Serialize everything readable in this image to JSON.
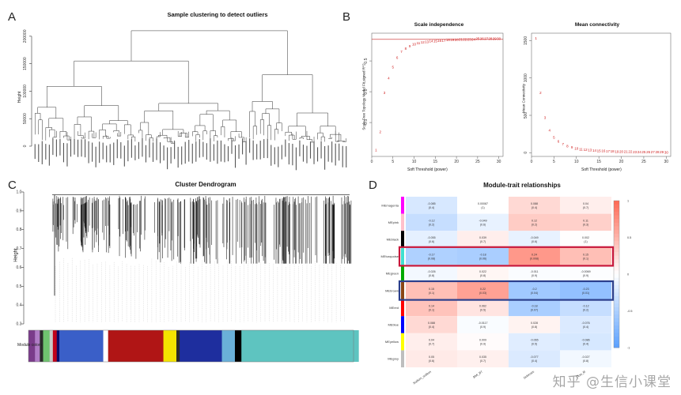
{
  "figure": {
    "panel_labels": [
      "A",
      "B",
      "C",
      "D"
    ],
    "watermark": "知乎 @生信小课堂"
  },
  "panelA": {
    "title": "Sample clustering to detect outliers",
    "ylabel": "Height",
    "yticks": [
      "0",
      "50000",
      "100000",
      "150000",
      "200000"
    ],
    "leaf_count": 88
  },
  "panelB": {
    "chart_data": [
      {
        "type": "scatter",
        "title": "Scale independence",
        "xlabel": "Soft Threshold (power)",
        "ylabel": "Scale Free Topology Model Fit,signed R^2",
        "xticks": [
          "0",
          "5",
          "10",
          "15",
          "20",
          "25",
          "30"
        ],
        "yticks": [
          "-0.5",
          "0.0",
          "0.5"
        ],
        "xlim": [
          0,
          31
        ],
        "ylim": [
          -1.05,
          0.95
        ],
        "threshold_line": 0.85,
        "x": [
          1,
          2,
          3,
          4,
          5,
          6,
          7,
          8,
          9,
          10,
          11,
          12,
          13,
          14,
          15,
          16,
          17,
          18,
          19,
          20,
          21,
          22,
          23,
          24,
          25,
          26,
          27,
          28,
          29,
          30
        ],
        "values": [
          -0.95,
          -0.65,
          -0.02,
          0.22,
          0.4,
          0.55,
          0.65,
          0.7,
          0.74,
          0.77,
          0.79,
          0.8,
          0.81,
          0.82,
          0.82,
          0.83,
          0.83,
          0.84,
          0.84,
          0.84,
          0.85,
          0.85,
          0.85,
          0.85,
          0.86,
          0.86,
          0.86,
          0.86,
          0.86,
          0.86
        ]
      },
      {
        "type": "scatter",
        "title": "Mean connectivity",
        "xlabel": "Soft Threshold (power)",
        "ylabel": "Mean Connectivity",
        "xticks": [
          "0",
          "5",
          "10",
          "15",
          "20",
          "25",
          "30"
        ],
        "yticks": [
          "0",
          "500",
          "1000",
          "1500"
        ],
        "xlim": [
          0,
          31
        ],
        "ylim": [
          -50,
          1600
        ],
        "x": [
          1,
          2,
          3,
          4,
          5,
          6,
          7,
          8,
          9,
          10,
          11,
          12,
          13,
          14,
          15,
          16,
          17,
          18,
          19,
          20,
          21,
          22,
          23,
          24,
          25,
          26,
          27,
          28,
          29,
          30
        ],
        "values": [
          1530,
          800,
          470,
          300,
          205,
          150,
          112,
          88,
          70,
          57,
          47,
          40,
          34,
          29,
          25,
          22,
          19,
          17,
          15,
          13,
          12,
          11,
          10,
          9,
          8,
          7,
          7,
          6,
          6,
          5
        ]
      }
    ]
  },
  "panelC": {
    "title": "Cluster Dendrogram",
    "ylabel": "Height",
    "yticks": [
      "0.3",
      "0.4",
      "0.5",
      "0.6",
      "0.7",
      "0.8",
      "0.9",
      "1.0"
    ],
    "colorbar_label": "Module colors",
    "module_colors": [
      "#7a3b8a",
      "#b07cc6",
      "#2a2a2a",
      "#6fc36f",
      "#c8c8c8",
      "#c0001a",
      "#0a0a6a",
      "#3a5fc8",
      "#ffffff",
      "#b01515",
      "#f4e400",
      "#2a2a2a",
      "#1e2e9e",
      "#6ab0d8",
      "#000000",
      "#5ec4c0"
    ],
    "module_widths": [
      0.02,
      0.015,
      0.01,
      0.02,
      0.01,
      0.012,
      0.008,
      0.135,
      0.015,
      0.17,
      0.04,
      0.01,
      0.13,
      0.04,
      0.02,
      0.36
    ]
  },
  "panelD": {
    "chart_data": {
      "type": "heatmap",
      "title": "Module-trait relationships",
      "rows": [
        "MEmagenta",
        "MEpink",
        "MEblack",
        "MEturquoise",
        "MEgreen",
        "MEbrown",
        "MEred",
        "MEblue",
        "MEyellow",
        "MEgrey"
      ],
      "row_colors": [
        "#ff00ff",
        "#ffc0cb",
        "#000000",
        "#40e0d0",
        "#00aa00",
        "#8b4513",
        "#ff0000",
        "#0000ff",
        "#ffff00",
        "#bebebe"
      ],
      "columns": [
        "Sodium_sodium",
        "BMI_BT",
        "Sclerosis",
        "Flow_M"
      ],
      "values": [
        [
          -0.085,
          0.00087,
          0.088,
          0.04
        ],
        [
          -0.12,
          -0.049,
          0.12,
          0.11
        ],
        [
          -0.055,
          0.039,
          -0.049,
          0.002
        ],
        [
          -0.17,
          -0.18,
          0.24,
          0.15
        ],
        [
          -0.026,
          0.022,
          -0.011,
          -0.0069
        ],
        [
          0.15,
          0.22,
          -0.2,
          -0.23
        ],
        [
          0.14,
          0.062,
          -0.18,
          -0.12
        ],
        [
          0.088,
          -0.0117,
          0.028,
          -0.076
        ],
        [
          0.04,
          0.009,
          -0.065,
          -0.086
        ],
        [
          0.05,
          0.035,
          -0.077,
          -0.027
        ]
      ],
      "pvalues": [
        [
          "(0.4)",
          "(1)",
          "(0.4)",
          "(0.7)"
        ],
        [
          "(0.2)",
          "(0.6)",
          "(0.2)",
          "(0.3)"
        ],
        [
          "(0.6)",
          "(0.7)",
          "(0.6)",
          "(1)"
        ],
        [
          "(0.08)",
          "(0.06)",
          "(0.008)",
          "(0.1)"
        ],
        [
          "(0.8)",
          "(0.8)",
          "(0.9)",
          "(0.9)"
        ],
        [
          "(0.1)",
          "(0.03)",
          "(0.04)",
          "(0.01)"
        ],
        [
          "(0.1)",
          "(0.5)",
          "(0.07)",
          "(0.2)"
        ],
        [
          "(0.4)",
          "(0.9)",
          "(0.8)",
          "(0.4)"
        ],
        [
          "(0.7)",
          "(0.9)",
          "(0.5)",
          "(0.4)"
        ],
        [
          "(0.6)",
          "(0.7)",
          "(0.4)",
          "(0.8)"
        ]
      ],
      "value_range": [
        -1,
        1
      ],
      "colorbar_ticks": [
        "1",
        "0.5",
        "0",
        "-0.5",
        "-1"
      ],
      "highlighted_rows": [
        {
          "row": "MEturquoise",
          "color": "#c8173a"
        },
        {
          "row": "MEbrown",
          "color": "#2b3f8c"
        }
      ]
    }
  }
}
